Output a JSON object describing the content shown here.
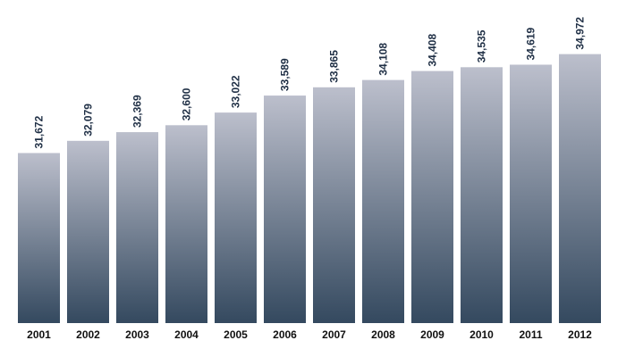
{
  "chart_data": {
    "type": "bar",
    "categories": [
      "2001",
      "2002",
      "2003",
      "2004",
      "2005",
      "2006",
      "2007",
      "2008",
      "2009",
      "2010",
      "2011",
      "2012"
    ],
    "values": [
      31672,
      32079,
      32369,
      32600,
      33022,
      33589,
      33865,
      34108,
      34408,
      34535,
      34619,
      34972
    ],
    "value_labels": [
      "31,672",
      "32,079",
      "32,369",
      "32,600",
      "33,022",
      "33,589",
      "33,865",
      "34,108",
      "34,408",
      "34,535",
      "34,619",
      "34,972"
    ],
    "title": "",
    "xlabel": "",
    "ylabel": "",
    "ylim": [
      26000,
      36300
    ],
    "grid": false,
    "legend": "none",
    "colors": {
      "bar_top": "#bcbfcc",
      "bar_bottom": "#34495f",
      "value_label": "#1f2f45",
      "tick_label": "#111111"
    }
  }
}
